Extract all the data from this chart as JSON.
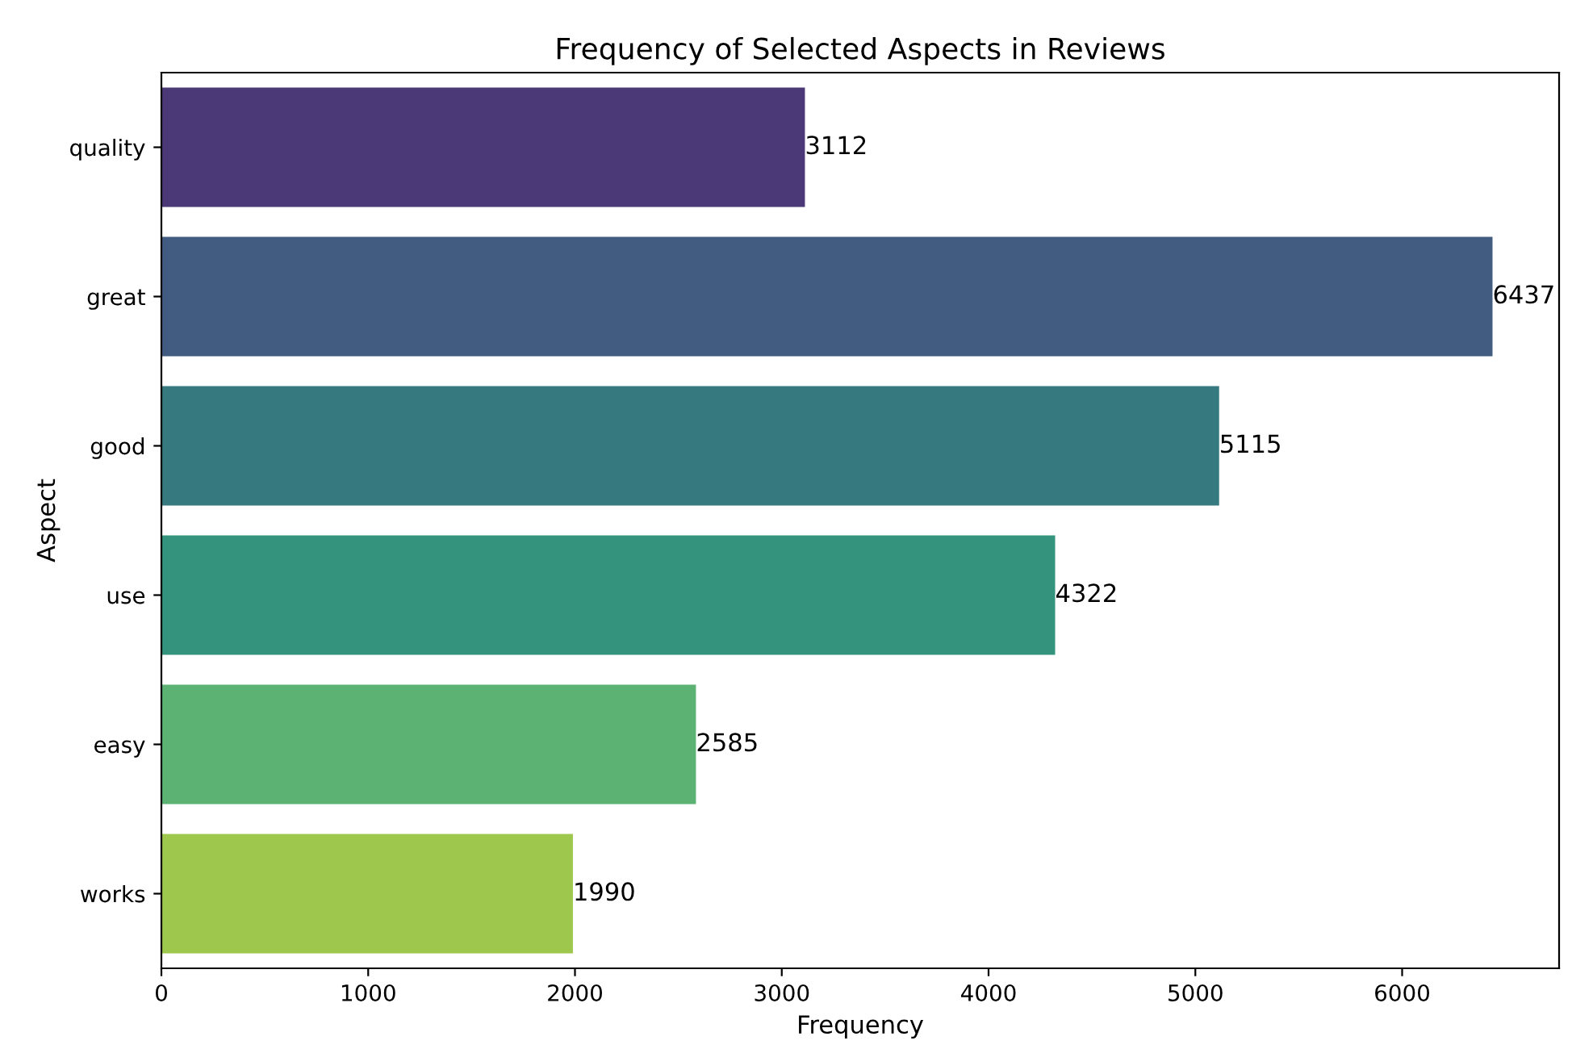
{
  "chart_data": {
    "type": "bar",
    "orientation": "horizontal",
    "title": "Frequency of Selected Aspects in Reviews",
    "xlabel": "Frequency",
    "ylabel": "Aspect",
    "categories": [
      "quality",
      "great",
      "good",
      "use",
      "easy",
      "works"
    ],
    "values": [
      3112,
      6437,
      5115,
      4322,
      2585,
      1990
    ],
    "colors": [
      "#4b3977",
      "#415c80",
      "#36797f",
      "#33937d",
      "#5bb273",
      "#9dc74d"
    ],
    "xlim": [
      0,
      6759
    ],
    "xticks": [
      0,
      1000,
      2000,
      3000,
      4000,
      5000,
      6000
    ],
    "data_labels": true,
    "grid": false,
    "legend": false
  }
}
